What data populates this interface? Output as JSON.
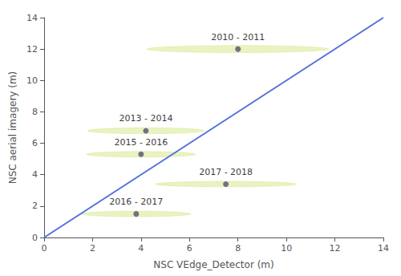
{
  "chart_data": {
    "type": "scatter",
    "xlabel": "NSC VEdge_Detector (m)",
    "ylabel": "NSC aerial imagery (m)",
    "xlim": [
      0,
      14
    ],
    "ylim": [
      0,
      14
    ],
    "xticks": [
      0,
      2,
      4,
      6,
      8,
      10,
      12,
      14
    ],
    "yticks": [
      0,
      2,
      4,
      6,
      8,
      10,
      12,
      14
    ],
    "grid": false,
    "series": [
      {
        "type": "line",
        "x": [
          0,
          14
        ],
        "values": [
          0,
          14
        ]
      },
      {
        "type": "scatter",
        "x": [
          8.0,
          4.2,
          4.0,
          7.5,
          3.8
        ],
        "values": [
          12.0,
          6.8,
          5.3,
          3.4,
          1.5
        ],
        "labels": [
          "2010 - 2011",
          "2013 - 2014",
          "2015 - 2016",
          "2017 - 2018",
          "2016 - 2017"
        ],
        "ellipse_width": [
          7.5,
          4.8,
          4.5,
          5.8,
          4.5
        ],
        "ellipse_height": [
          0.45,
          0.38,
          0.35,
          0.35,
          0.35
        ]
      }
    ]
  }
}
